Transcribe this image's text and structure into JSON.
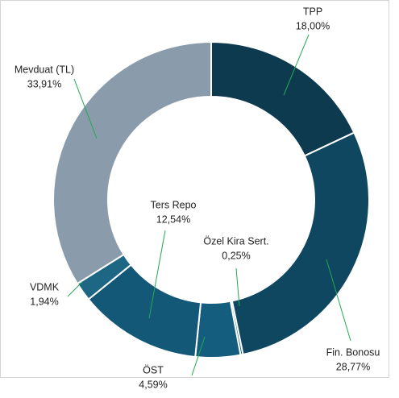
{
  "chart_data": {
    "type": "donut",
    "categories": [
      "TPP",
      "Fin. Bonosu",
      "Özel Kira Sert.",
      "ÖST",
      "Ters Repo",
      "VDMK",
      "Mevduat (TL)"
    ],
    "values": [
      18.0,
      28.77,
      0.25,
      4.59,
      12.54,
      1.94,
      33.91
    ],
    "value_labels": [
      "18,00%",
      "28,77%",
      "0,25%",
      "4,59%",
      "12,54%",
      "1,94%",
      "33,91%"
    ],
    "colors": [
      "#0e3a50",
      "#0f4761",
      "#1b6a8c",
      "#155d7e",
      "#145878",
      "#1d6684",
      "#8a9cab"
    ],
    "leader_color": "#21a950"
  }
}
